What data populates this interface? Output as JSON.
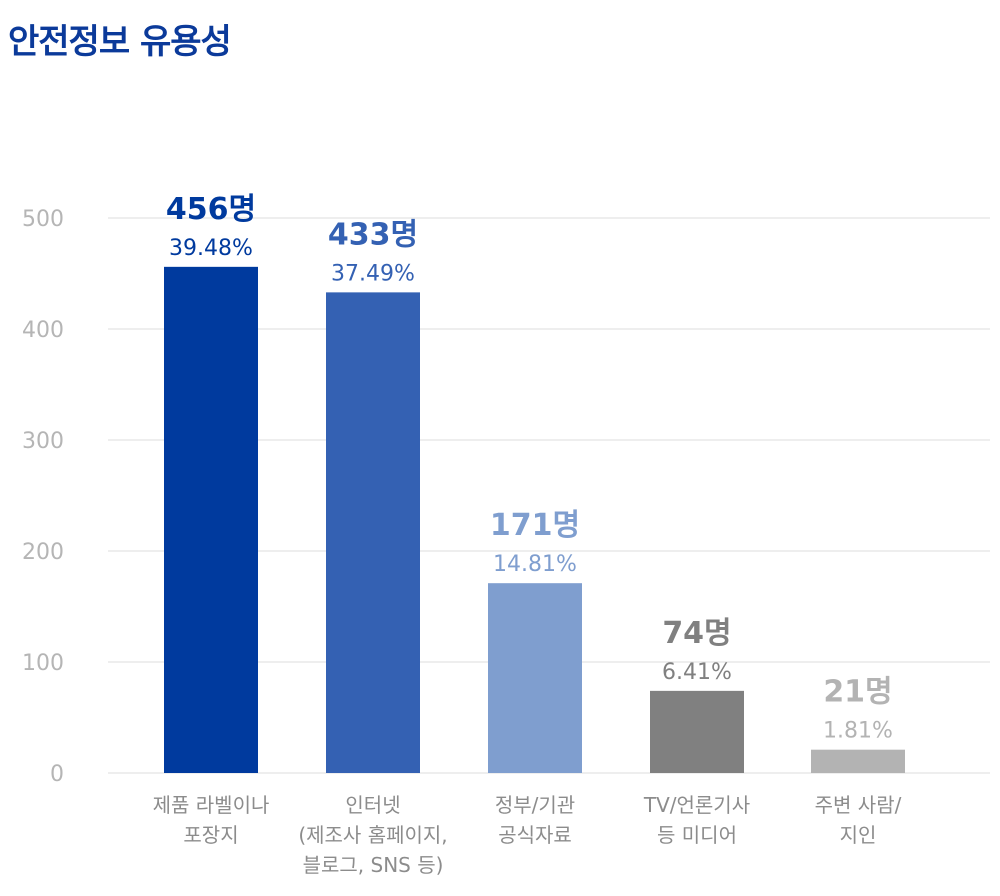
{
  "title": "안전정보 유용성",
  "chart_data": {
    "type": "bar",
    "categories": [
      [
        "제품 라벨이나",
        "포장지"
      ],
      [
        "인터넷",
        "(제조사 홈페이지,",
        "블로그, SNS 등)"
      ],
      [
        "정부/기관",
        "공식자료"
      ],
      [
        "TV/언론기사",
        "등 미디어"
      ],
      [
        "주변 사람/",
        "지인"
      ]
    ],
    "values": [
      456,
      433,
      171,
      74,
      21
    ],
    "value_labels": [
      "456명",
      "433명",
      "171명",
      "74명",
      "21명"
    ],
    "percent_labels": [
      "39.48%",
      "37.49%",
      "14.81%",
      "6.41%",
      "1.81%"
    ],
    "colors": [
      "#003a9e",
      "#3461b3",
      "#7f9ecf",
      "#808080",
      "#b3b3b3"
    ],
    "y_ticks": [
      "0",
      "100",
      "200",
      "300",
      "400",
      "500"
    ],
    "ylim": [
      0,
      500
    ],
    "grid": true
  }
}
